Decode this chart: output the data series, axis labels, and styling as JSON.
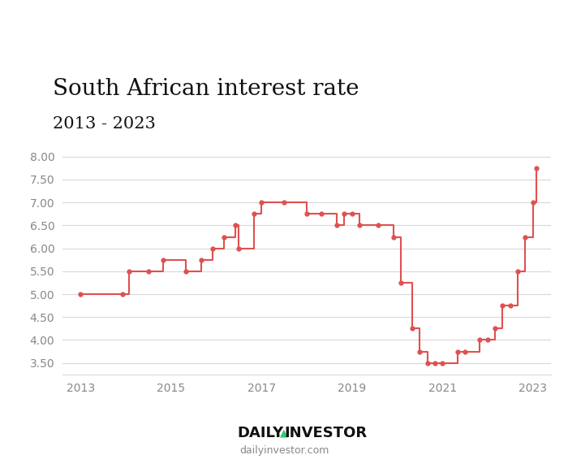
{
  "title_line1": "South African interest rate",
  "title_line2": "2013 - 2023",
  "line_color": "#e05050",
  "marker_color": "#e05050",
  "background_color": "#ffffff",
  "grid_color": "#d8d8d8",
  "tick_color": "#888888",
  "ylim": [
    3.25,
    8.15
  ],
  "xlim": [
    2012.6,
    2023.4
  ],
  "yticks": [
    3.5,
    4.0,
    4.5,
    5.0,
    5.5,
    6.0,
    6.5,
    7.0,
    7.5,
    8.0
  ],
  "xticks": [
    2013,
    2015,
    2017,
    2019,
    2021,
    2023
  ],
  "watermark_top_left": "DAILY",
  "watermark_triangle": "▲",
  "watermark_top_right": "INVESTOR",
  "watermark_bottom": "dailyinvestor.com",
  "triangle_color": "#2ecc71",
  "dates": [
    2013.0,
    2013.92,
    2014.08,
    2014.5,
    2014.83,
    2015.33,
    2015.67,
    2015.92,
    2016.17,
    2016.42,
    2016.5,
    2016.83,
    2017.0,
    2017.5,
    2018.0,
    2018.33,
    2018.67,
    2018.83,
    2019.0,
    2019.17,
    2019.58,
    2019.92,
    2020.08,
    2020.33,
    2020.5,
    2020.67,
    2020.83,
    2021.0,
    2021.33,
    2021.5,
    2021.83,
    2022.0,
    2022.17,
    2022.33,
    2022.5,
    2022.67,
    2022.83,
    2023.0,
    2023.08
  ],
  "rates": [
    5.0,
    5.0,
    5.5,
    5.5,
    5.75,
    5.5,
    5.75,
    6.0,
    6.25,
    6.5,
    6.0,
    6.75,
    7.0,
    7.0,
    6.75,
    6.75,
    6.5,
    6.75,
    6.75,
    6.5,
    6.5,
    6.25,
    5.25,
    4.25,
    3.75,
    3.5,
    3.5,
    3.5,
    3.75,
    3.75,
    4.0,
    4.0,
    4.25,
    4.75,
    4.75,
    5.5,
    6.25,
    7.0,
    7.75
  ]
}
